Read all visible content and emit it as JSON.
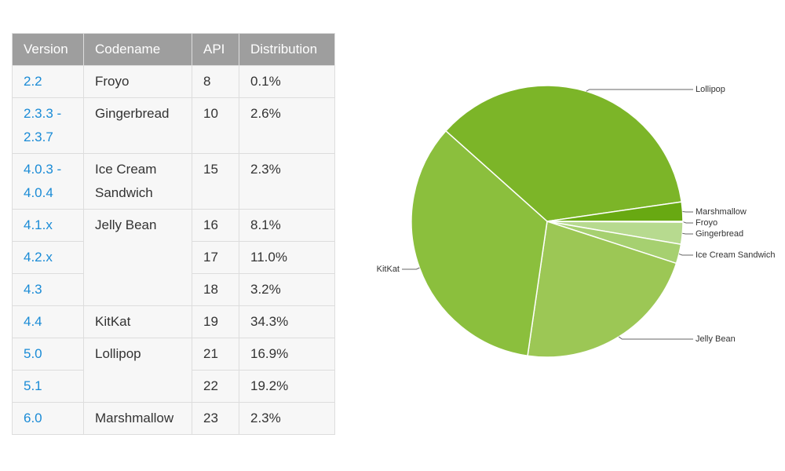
{
  "table": {
    "header": [
      "Version",
      "Codename",
      "API",
      "Distribution"
    ],
    "rows": [
      [
        "2.2",
        "Froyo",
        "8",
        "0.1%"
      ],
      [
        "2.3.3 - 2.3.7",
        "Gingerbread",
        "10",
        "2.6%"
      ],
      [
        "4.0.3 - 4.0.4",
        "Ice Cream Sandwich",
        "15",
        "2.3%"
      ],
      [
        "4.1.x",
        "Jelly Bean",
        "16",
        "8.1%"
      ],
      [
        "4.2.x",
        null,
        "17",
        "11.0%"
      ],
      [
        "4.3",
        null,
        "18",
        "3.2%"
      ],
      [
        "4.4",
        "KitKat",
        "19",
        "34.3%"
      ],
      [
        "5.0",
        "Lollipop",
        "21",
        "16.9%"
      ],
      [
        "5.1",
        null,
        "22",
        "19.2%"
      ],
      [
        "6.0",
        "Marshmallow",
        "23",
        "2.3%"
      ]
    ]
  },
  "chart_data": {
    "type": "pie",
    "categories": [
      "Lollipop",
      "Marshmallow",
      "Froyo",
      "Gingerbread",
      "Ice Cream Sandwich",
      "Jelly Bean",
      "KitKat"
    ],
    "values": [
      36.1,
      2.3,
      0.1,
      2.6,
      2.3,
      22.3,
      34.3
    ],
    "colors": [
      "#7cb528",
      "#68a912",
      "#b7da8f",
      "#b7da8f",
      "#a6d070",
      "#9cc755",
      "#8bbf3d"
    ]
  }
}
